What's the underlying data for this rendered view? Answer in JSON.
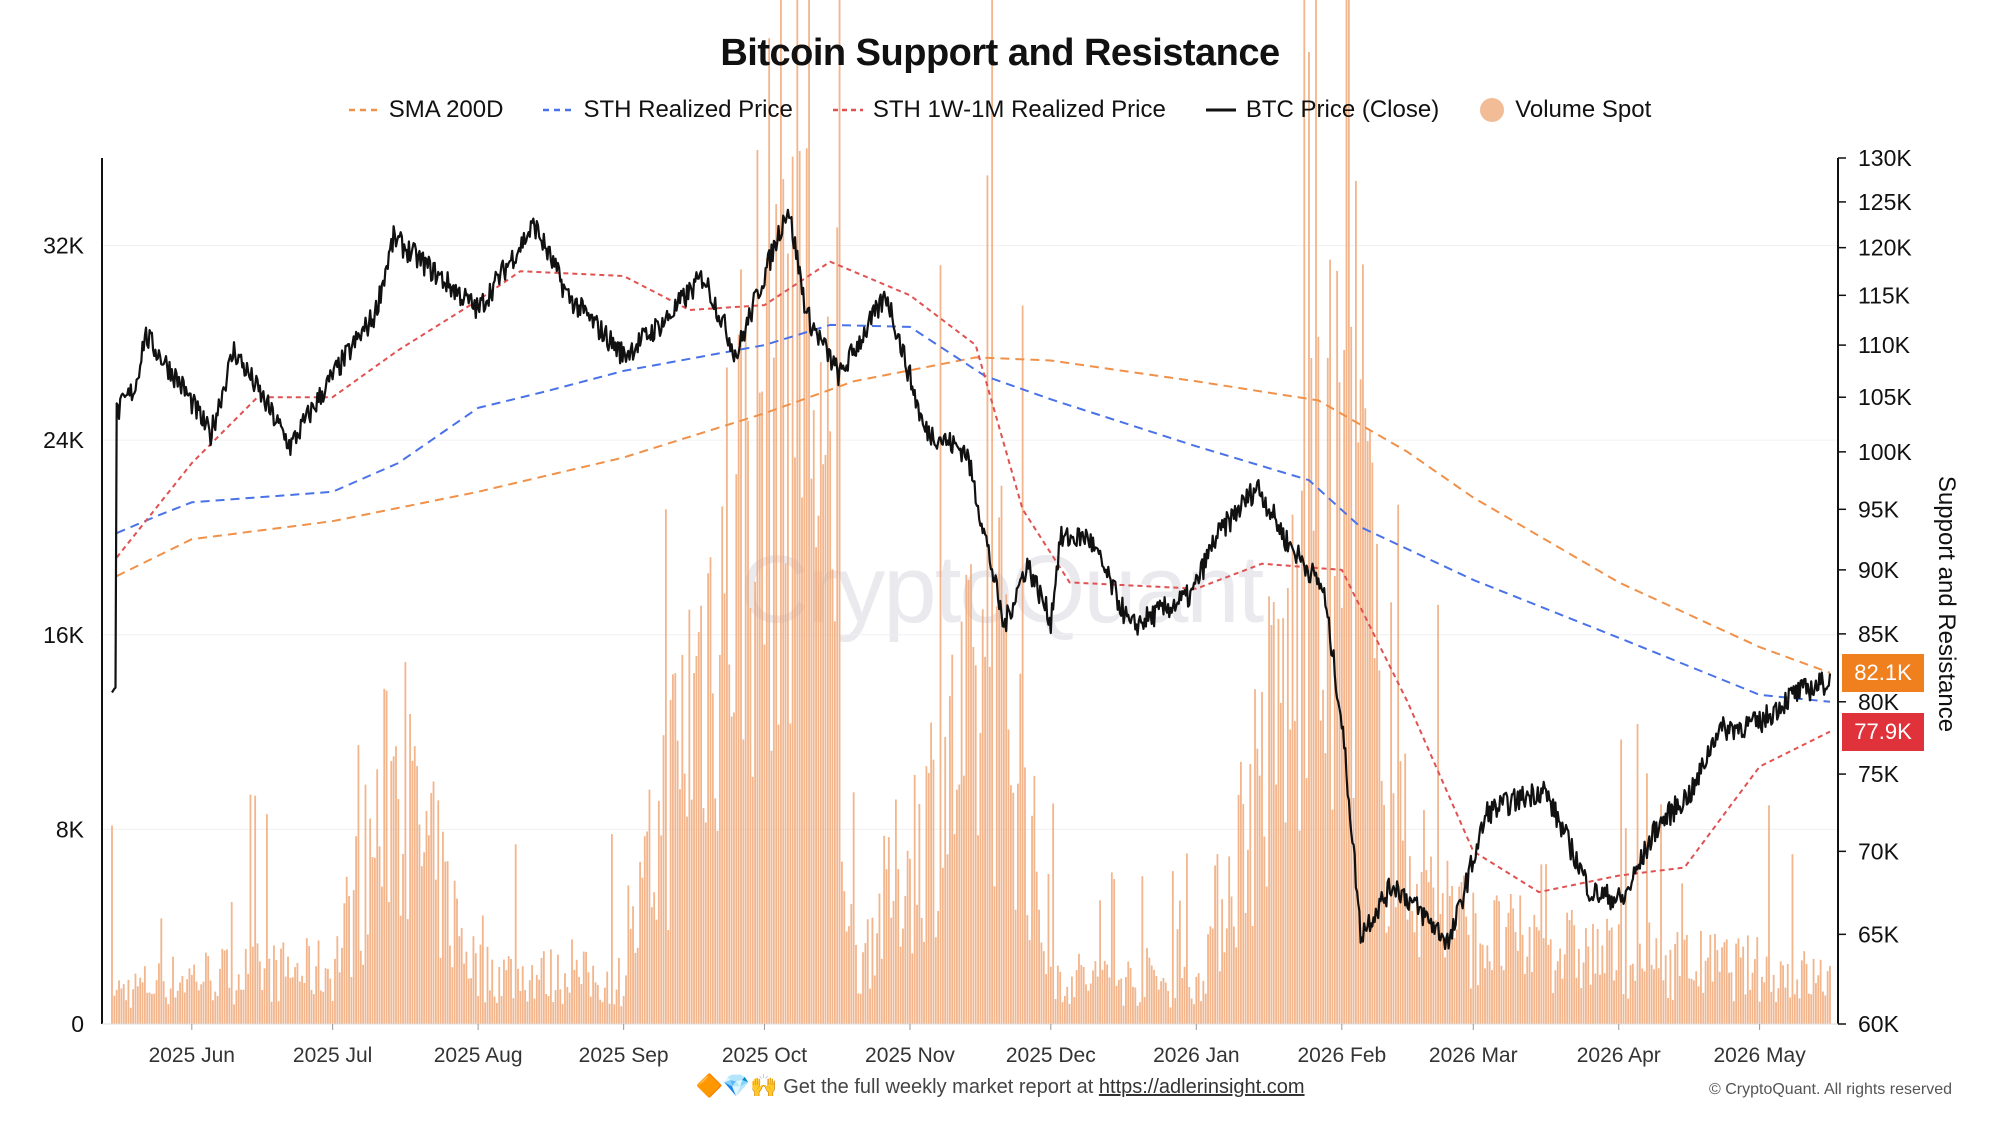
{
  "chart_data": {
    "type": "line",
    "title": "Bitcoin Support and Resistance",
    "ylabel_right": "Support and Resistance",
    "watermark": "CryptoQuant",
    "x_ticks": [
      "2025 Jun",
      "2025 Jul",
      "2025 Aug",
      "2025 Sep",
      "2025 Oct",
      "2025 Nov",
      "2025 Dec",
      "2026 Jan",
      "2026 Feb",
      "2026 Mar",
      "2026 Apr",
      "2026 May"
    ],
    "x_range": [
      "2025-05-15",
      "2026-05-16"
    ],
    "y_left_ticks": [
      "0",
      "8K",
      "16K",
      "24K",
      "32K"
    ],
    "y_left_range": [
      0,
      35600
    ],
    "y_right_ticks": [
      "60K",
      "65K",
      "70K",
      "75K",
      "80K",
      "85K",
      "90K",
      "95K",
      "100K",
      "105K",
      "110K",
      "115K",
      "120K",
      "125K",
      "130K"
    ],
    "y_right_scale": "log",
    "y_right_range": [
      60000,
      130000
    ],
    "grid": "horizontal",
    "legend_position": "top-center",
    "series": [
      {
        "name": "SMA 200D",
        "axis": "right",
        "style": "dashed",
        "color": "#f0914a",
        "points": [
          [
            "2025-05-16",
            89500
          ],
          [
            "2025-06-01",
            92500
          ],
          [
            "2025-07-01",
            94000
          ],
          [
            "2025-08-01",
            96500
          ],
          [
            "2025-09-01",
            99500
          ],
          [
            "2025-10-01",
            103500
          ],
          [
            "2025-10-20",
            106500
          ],
          [
            "2025-11-15",
            108800
          ],
          [
            "2025-12-01",
            108500
          ],
          [
            "2026-01-01",
            106500
          ],
          [
            "2026-01-27",
            104700
          ],
          [
            "2026-02-15",
            100000
          ],
          [
            "2026-03-01",
            96000
          ],
          [
            "2026-04-01",
            89000
          ],
          [
            "2026-05-01",
            84000
          ],
          [
            "2026-05-16",
            82100
          ]
        ]
      },
      {
        "name": "STH Realized Price",
        "axis": "right",
        "style": "dashed",
        "color": "#4a72e8",
        "points": [
          [
            "2025-05-16",
            93000
          ],
          [
            "2025-05-25",
            94500
          ],
          [
            "2025-06-01",
            95600
          ],
          [
            "2025-07-01",
            96500
          ],
          [
            "2025-07-15",
            99000
          ],
          [
            "2025-08-01",
            104000
          ],
          [
            "2025-08-15",
            105500
          ],
          [
            "2025-09-01",
            107500
          ],
          [
            "2025-10-01",
            110000
          ],
          [
            "2025-10-15",
            112000
          ],
          [
            "2025-11-01",
            111800
          ],
          [
            "2025-11-17",
            107000
          ],
          [
            "2025-12-01",
            104800
          ],
          [
            "2026-01-01",
            100500
          ],
          [
            "2026-01-25",
            97500
          ],
          [
            "2026-02-05",
            93500
          ],
          [
            "2026-03-01",
            89200
          ],
          [
            "2026-04-01",
            84700
          ],
          [
            "2026-05-01",
            80500
          ],
          [
            "2026-05-16",
            80000
          ]
        ]
      },
      {
        "name": "STH 1W-1M Realized Price",
        "axis": "right",
        "style": "dashed",
        "color": "#e05252",
        "points": [
          [
            "2025-05-16",
            91000
          ],
          [
            "2025-06-01",
            99000
          ],
          [
            "2025-06-15",
            105000
          ],
          [
            "2025-07-01",
            105000
          ],
          [
            "2025-07-15",
            109500
          ],
          [
            "2025-08-01",
            114500
          ],
          [
            "2025-08-10",
            117500
          ],
          [
            "2025-09-01",
            117000
          ],
          [
            "2025-09-15",
            113500
          ],
          [
            "2025-10-01",
            114000
          ],
          [
            "2025-10-15",
            118500
          ],
          [
            "2025-11-01",
            115000
          ],
          [
            "2025-11-15",
            110000
          ],
          [
            "2025-11-25",
            95000
          ],
          [
            "2025-12-05",
            89000
          ],
          [
            "2026-01-01",
            88500
          ],
          [
            "2026-01-15",
            90500
          ],
          [
            "2026-02-01",
            90000
          ],
          [
            "2026-02-15",
            80000
          ],
          [
            "2026-03-01",
            70000
          ],
          [
            "2026-03-15",
            67500
          ],
          [
            "2026-04-01",
            68500
          ],
          [
            "2026-04-15",
            69000
          ],
          [
            "2026-05-01",
            75500
          ],
          [
            "2026-05-16",
            77900
          ]
        ]
      },
      {
        "name": "BTC Price (Close)",
        "axis": "right",
        "style": "solid",
        "color": "#111111",
        "points": [
          [
            "2025-05-16",
            103500
          ],
          [
            "2025-05-20",
            106000
          ],
          [
            "2025-05-22",
            111000
          ],
          [
            "2025-05-30",
            106000
          ],
          [
            "2025-06-05",
            101500
          ],
          [
            "2025-06-10",
            109500
          ],
          [
            "2025-06-22",
            100500
          ],
          [
            "2025-07-01",
            107000
          ],
          [
            "2025-07-10",
            113000
          ],
          [
            "2025-07-14",
            121000
          ],
          [
            "2025-07-20",
            118500
          ],
          [
            "2025-08-01",
            113500
          ],
          [
            "2025-08-13",
            122500
          ],
          [
            "2025-08-20",
            115000
          ],
          [
            "2025-09-01",
            109000
          ],
          [
            "2025-09-10",
            112500
          ],
          [
            "2025-09-18",
            117000
          ],
          [
            "2025-09-25",
            109000
          ],
          [
            "2025-10-02",
            118500
          ],
          [
            "2025-10-06",
            124500
          ],
          [
            "2025-10-10",
            113000
          ],
          [
            "2025-10-17",
            107000
          ],
          [
            "2025-10-27",
            115000
          ],
          [
            "2025-11-04",
            102000
          ],
          [
            "2025-11-13",
            100000
          ],
          [
            "2025-11-21",
            85500
          ],
          [
            "2025-11-26",
            90500
          ],
          [
            "2025-12-01",
            86000
          ],
          [
            "2025-12-03",
            92500
          ],
          [
            "2025-12-09",
            92700
          ],
          [
            "2025-12-18",
            85500
          ],
          [
            "2025-12-31",
            88000
          ],
          [
            "2026-01-05",
            92500
          ],
          [
            "2026-01-14",
            97000
          ],
          [
            "2026-01-20",
            92500
          ],
          [
            "2026-01-28",
            88500
          ],
          [
            "2026-02-01",
            78500
          ],
          [
            "2026-02-05",
            65000
          ],
          [
            "2026-02-12",
            68000
          ],
          [
            "2026-02-24",
            64500
          ],
          [
            "2026-03-04",
            72500
          ],
          [
            "2026-03-16",
            74000
          ],
          [
            "2026-03-26",
            67500
          ],
          [
            "2026-04-02",
            67000
          ],
          [
            "2026-04-09",
            71500
          ],
          [
            "2026-04-17",
            74000
          ],
          [
            "2026-04-22",
            78000
          ],
          [
            "2026-05-01",
            78500
          ],
          [
            "2026-05-08",
            80500
          ],
          [
            "2026-05-16",
            81500
          ]
        ]
      },
      {
        "name": "Volume Spot",
        "axis": "left",
        "style": "bars",
        "color": "#f0a878",
        "points": [
          [
            "2025-05-16",
            1500
          ],
          [
            "2025-06-01",
            2200
          ],
          [
            "2025-07-01",
            2500
          ],
          [
            "2025-07-14",
            11000
          ],
          [
            "2025-08-01",
            2400
          ],
          [
            "2025-09-01",
            2000
          ],
          [
            "2025-10-10",
            36000
          ],
          [
            "2025-10-20",
            2500
          ],
          [
            "2025-11-21",
            16500
          ],
          [
            "2025-12-01",
            2200
          ],
          [
            "2026-01-01",
            1800
          ],
          [
            "2026-02-05",
            26500
          ],
          [
            "2026-02-10",
            9000
          ],
          [
            "2026-03-01",
            4000
          ],
          [
            "2026-04-01",
            3000
          ],
          [
            "2026-05-01",
            2500
          ],
          [
            "2026-05-16",
            2000
          ]
        ]
      }
    ],
    "badges": [
      {
        "label": "82.1K",
        "value": 82100,
        "color": "#f07f1e"
      },
      {
        "label": "77.9K",
        "value": 77900,
        "color": "#e0323a"
      }
    ]
  },
  "footer": {
    "emojis": "🔶💎🙌",
    "text": "Get the full weekly market report at",
    "link": "https://adlerinsight.com",
    "copyright": "© CryptoQuant. All rights reserved"
  }
}
